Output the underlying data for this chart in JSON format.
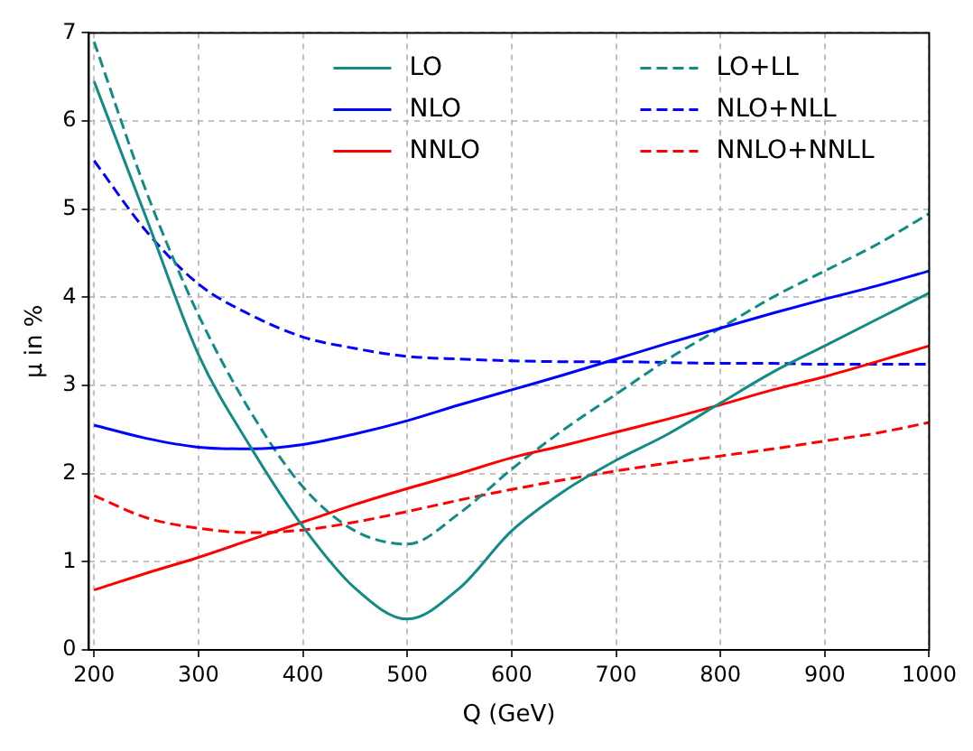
{
  "chart_data": {
    "type": "line",
    "xlabel": "Q (GeV)",
    "ylabel": "μ in %",
    "x": [
      200,
      250,
      300,
      350,
      400,
      450,
      500,
      550,
      600,
      650,
      700,
      750,
      800,
      850,
      900,
      950,
      1000
    ],
    "xlim": [
      195,
      1000
    ],
    "xticks": [
      200,
      300,
      400,
      500,
      600,
      700,
      800,
      900,
      1000
    ],
    "ylim": [
      0,
      7
    ],
    "yticks": [
      0,
      1,
      2,
      3,
      4,
      5,
      6,
      7
    ],
    "grid": true,
    "legend": "top right",
    "marker": "none",
    "series": [
      {
        "name": "LO",
        "color": "#138b85",
        "line_style": "solid",
        "values": [
          6.45,
          4.9,
          3.35,
          2.3,
          1.4,
          0.7,
          0.35,
          0.7,
          1.35,
          1.8,
          2.15,
          2.45,
          2.8,
          3.15,
          3.45,
          3.75,
          4.05
        ]
      },
      {
        "name": "NLO",
        "color": "#0000ff",
        "line_style": "solid",
        "values": [
          2.55,
          2.4,
          2.3,
          2.28,
          2.33,
          2.45,
          2.6,
          2.78,
          2.95,
          3.12,
          3.3,
          3.48,
          3.65,
          3.82,
          3.98,
          4.13,
          4.3
        ]
      },
      {
        "name": "NNLO",
        "color": "#ff0000",
        "line_style": "solid",
        "values": [
          0.68,
          0.87,
          1.05,
          1.25,
          1.45,
          1.65,
          1.83,
          2.0,
          2.18,
          2.32,
          2.47,
          2.62,
          2.78,
          2.95,
          3.1,
          3.27,
          3.45
        ]
      },
      {
        "name": "LO+LL",
        "color": "#138b85",
        "line_style": "dashed",
        "values": [
          6.9,
          5.2,
          3.8,
          2.7,
          1.85,
          1.35,
          1.2,
          1.55,
          2.05,
          2.5,
          2.9,
          3.3,
          3.65,
          4.0,
          4.3,
          4.6,
          4.95
        ]
      },
      {
        "name": "NLO+NLL",
        "color": "#0000ff",
        "line_style": "dashed",
        "values": [
          5.55,
          4.75,
          4.15,
          3.8,
          3.55,
          3.42,
          3.33,
          3.3,
          3.28,
          3.27,
          3.27,
          3.26,
          3.25,
          3.25,
          3.24,
          3.24,
          3.24
        ]
      },
      {
        "name": "NNLO+NNLL",
        "color": "#ff0000",
        "line_style": "dashed",
        "values": [
          1.75,
          1.5,
          1.38,
          1.33,
          1.36,
          1.45,
          1.57,
          1.7,
          1.82,
          1.93,
          2.03,
          2.12,
          2.2,
          2.28,
          2.37,
          2.46,
          2.58
        ]
      }
    ]
  }
}
